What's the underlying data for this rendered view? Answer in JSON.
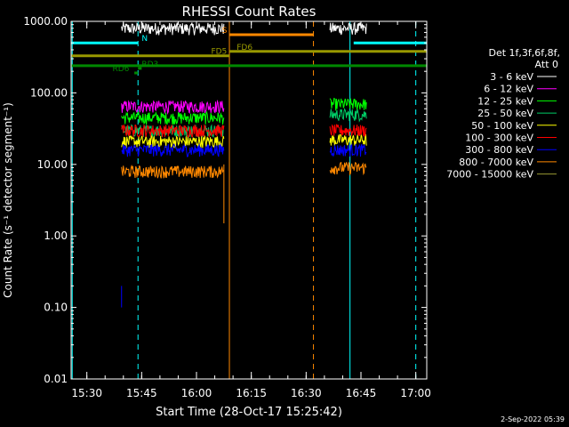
{
  "chart_data": {
    "type": "line",
    "title": "RHESSI Count Rates",
    "xlabel": "Start Time (28-Oct-17 15:25:42)",
    "ylabel": "Count Rate (s⁻¹ detector segment⁻¹)",
    "yscale": "log",
    "ylim": [
      0.01,
      1000
    ],
    "xlim": [
      "15:25:42",
      "17:03:00"
    ],
    "y_ticks": [
      "0.01",
      "0.10",
      "1.00",
      "10.00",
      "100.00",
      "1000.00"
    ],
    "x_ticks": [
      "15:30",
      "15:45",
      "16:00",
      "16:15",
      "16:30",
      "16:45",
      "17:00"
    ],
    "legend_header": [
      "Det 1f,3f,6f,8f,",
      "Att 0"
    ],
    "series": [
      {
        "name": "3 - 6 keV",
        "color": "#ffffff",
        "segments": [
          {
            "start": "15:39:30",
            "end": "16:07:30",
            "mean": 800
          },
          {
            "start": "16:36:30",
            "end": "16:46:30",
            "mean": 800
          }
        ]
      },
      {
        "name": "6 - 12 keV",
        "color": "#ff00ff",
        "segments": [
          {
            "start": "15:39:30",
            "end": "16:07:30",
            "mean": 65
          }
        ]
      },
      {
        "name": "12 - 25 keV",
        "color": "#00ff00",
        "segments": [
          {
            "start": "15:39:30",
            "end": "16:07:30",
            "mean": 45
          },
          {
            "start": "16:36:30",
            "end": "16:46:30",
            "mean": 70
          }
        ]
      },
      {
        "name": "25 - 50 keV",
        "color": "#00cc66",
        "segments": [
          {
            "start": "15:39:30",
            "end": "16:07:30",
            "mean": 30
          },
          {
            "start": "16:36:30",
            "end": "16:46:30",
            "mean": 50
          }
        ]
      },
      {
        "name": "50 - 100 keV",
        "color": "#ffff00",
        "segments": [
          {
            "start": "15:39:30",
            "end": "16:07:30",
            "mean": 21
          },
          {
            "start": "16:36:30",
            "end": "16:46:30",
            "mean": 22
          }
        ]
      },
      {
        "name": "100 - 300 keV",
        "color": "#ff0000",
        "segments": [
          {
            "start": "15:39:30",
            "end": "16:07:30",
            "mean": 30
          },
          {
            "start": "16:36:30",
            "end": "16:46:30",
            "mean": 30
          }
        ]
      },
      {
        "name": "300 - 800 keV",
        "color": "#0000ff",
        "segments": [
          {
            "start": "15:39:30",
            "end": "16:07:30",
            "mean": 16
          },
          {
            "start": "16:36:30",
            "end": "16:46:30",
            "mean": 16
          }
        ]
      },
      {
        "name": "800 - 7000 keV",
        "color": "#ff8800",
        "segments": [
          {
            "start": "15:39:30",
            "end": "16:07:30",
            "mean": 8
          },
          {
            "start": "16:36:30",
            "end": "16:46:30",
            "mean": 9
          }
        ]
      },
      {
        "name": "7000 - 15000 keV",
        "color": "#999933",
        "segments": []
      }
    ],
    "annotations": {
      "bars": [
        {
          "label": "N",
          "color": "#00ffff",
          "y": 500,
          "start": "15:25:42",
          "end": "15:44:00",
          "label_at": "15:45:00"
        },
        {
          "label": "N",
          "color": "#00ffff",
          "y": 500,
          "start": "16:43:00",
          "end": "17:03:00"
        },
        {
          "label": "S",
          "color": "#ff8800",
          "y": 650,
          "start": "16:09:00",
          "end": "16:32:00",
          "label_at": "16:07:00"
        },
        {
          "label": "FD5",
          "color": "#999900",
          "y": 330,
          "start": "15:25:42",
          "end": "16:09:00",
          "label_at": "16:04:00"
        },
        {
          "label": "FD6",
          "color": "#999900",
          "y": 380,
          "start": "16:09:00",
          "end": "17:03:00",
          "label_at": "16:11:00"
        },
        {
          "label": "RD6",
          "color": "#008800",
          "y": 240,
          "start": "15:25:42",
          "end": "17:03:00"
        },
        {
          "label": "RD6",
          "color": "#008800",
          "y": 190,
          "start": "15:43:00",
          "end": "15:44:00",
          "label_at": "15:37:00"
        },
        {
          "label": "RD3",
          "color": "#008800",
          "y": 220,
          "start": "15:44:00",
          "end": "15:45:00",
          "label_at": "15:45:00"
        }
      ],
      "solid_vlines": [
        {
          "time": "15:26:00",
          "color": "#00ffff"
        },
        {
          "time": "16:09:00",
          "color": "#ff8800"
        },
        {
          "time": "16:42:00",
          "color": "#00ffff"
        }
      ],
      "dashed_vlines": [
        {
          "time": "15:44:00",
          "color": "#00ffff"
        },
        {
          "time": "16:32:00",
          "color": "#ff8800"
        },
        {
          "time": "17:00:00",
          "color": "#00ffff"
        }
      ],
      "spikes": [
        {
          "time": "15:39:30",
          "color": "#0000ff",
          "from": 0.1,
          "to": 0.2
        },
        {
          "time": "16:07:30",
          "color": "#ff8800",
          "from": 1.5,
          "to": 10
        }
      ]
    },
    "footer": "2-Sep-2022 05:39"
  }
}
